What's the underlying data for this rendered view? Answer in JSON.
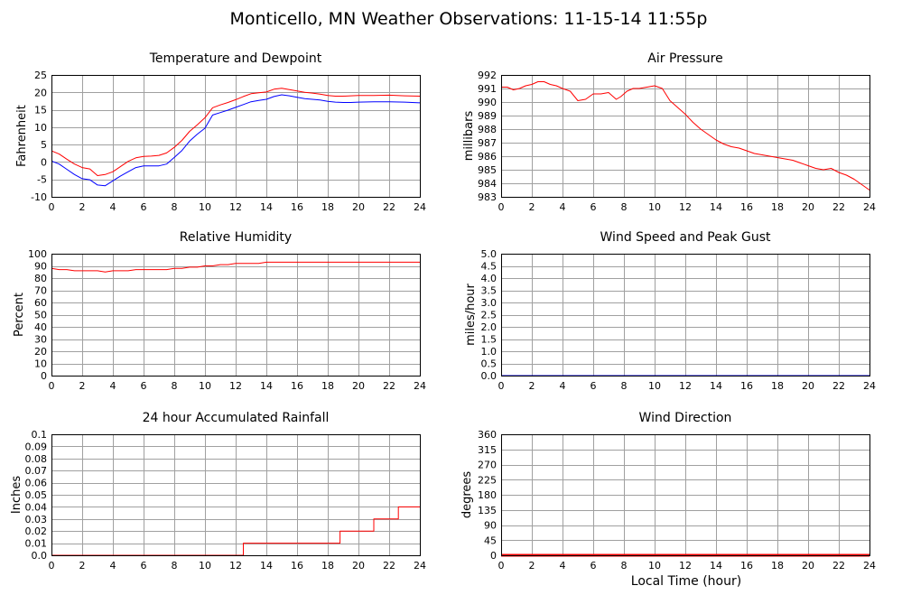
{
  "page": {
    "title": "Monticello, MN Weather Observations: 11-15-14 11:55p",
    "xlabel": "Local Time (hour)"
  },
  "chart_data": [
    {
      "id": "temp",
      "type": "line",
      "title": "Temperature and Dewpoint",
      "ylabel": "Fahrenheit",
      "xlim": [
        0,
        24
      ],
      "ylim": [
        -10,
        25
      ],
      "xticks": [
        0,
        2,
        4,
        6,
        8,
        10,
        12,
        14,
        16,
        18,
        20,
        22,
        24
      ],
      "yticks": [
        "-10",
        "-5",
        "0",
        "5",
        "10",
        "15",
        "20",
        "25"
      ],
      "grid": true,
      "series": [
        {
          "color": "#ff0000",
          "x": [
            0,
            0.5,
            1,
            1.5,
            2,
            2.5,
            3,
            3.5,
            4,
            4.5,
            5,
            5.5,
            6,
            6.5,
            7,
            7.5,
            8,
            8.5,
            9,
            9.5,
            10,
            10.5,
            11,
            11.5,
            12,
            12.5,
            13,
            13.5,
            14,
            14.5,
            15,
            15.5,
            16,
            16.5,
            17,
            17.5,
            18,
            18.5,
            19,
            19.5,
            20,
            21,
            22,
            23,
            24
          ],
          "y": [
            3.2,
            2.3,
            0.8,
            -0.6,
            -1.6,
            -2.0,
            -3.9,
            -3.6,
            -2.8,
            -1.3,
            0.2,
            1.2,
            1.6,
            1.7,
            1.9,
            2.6,
            4.2,
            6.2,
            8.8,
            10.7,
            12.7,
            15.6,
            16.4,
            17.1,
            17.9,
            18.8,
            19.6,
            19.9,
            20.1,
            20.9,
            21.2,
            20.8,
            20.4,
            20.0,
            19.8,
            19.5,
            19.1,
            18.9,
            18.9,
            19.0,
            19.1,
            19.1,
            19.2,
            19.0,
            18.9
          ]
        },
        {
          "color": "#0000ff",
          "x": [
            0,
            0.5,
            1,
            1.5,
            2,
            2.5,
            3,
            3.5,
            4,
            4.5,
            5,
            5.5,
            6,
            6.5,
            7,
            7.5,
            8,
            8.5,
            9,
            9.5,
            10,
            10.5,
            11,
            11.5,
            12,
            12.5,
            13,
            13.5,
            14,
            14.5,
            15,
            15.5,
            16,
            16.5,
            17,
            17.5,
            18,
            18.5,
            19,
            19.5,
            20,
            21,
            22,
            23,
            24
          ],
          "y": [
            0.3,
            -0.6,
            -2.1,
            -3.6,
            -4.8,
            -5.1,
            -6.6,
            -6.8,
            -5.4,
            -4.0,
            -2.8,
            -1.6,
            -1.1,
            -1.1,
            -1.1,
            -0.6,
            1.3,
            3.3,
            6.0,
            8.0,
            9.7,
            13.5,
            14.2,
            14.9,
            15.7,
            16.5,
            17.3,
            17.7,
            18.0,
            18.8,
            19.3,
            19.0,
            18.6,
            18.2,
            18.0,
            17.8,
            17.4,
            17.2,
            17.1,
            17.1,
            17.2,
            17.3,
            17.3,
            17.2,
            17.0
          ]
        }
      ]
    },
    {
      "id": "pressure",
      "type": "line",
      "title": "Air Pressure",
      "ylabel": "millibars",
      "xlim": [
        0,
        24
      ],
      "ylim": [
        983,
        992
      ],
      "xticks": [
        0,
        2,
        4,
        6,
        8,
        10,
        12,
        14,
        16,
        18,
        20,
        22,
        24
      ],
      "yticks": [
        "983",
        "984",
        "985",
        "986",
        "987",
        "988",
        "989",
        "990",
        "991",
        "992"
      ],
      "grid": true,
      "series": [
        {
          "color": "#ff0000",
          "x": [
            0,
            0.4,
            0.8,
            1.2,
            1.6,
            2.0,
            2.4,
            2.8,
            3.2,
            3.6,
            4.0,
            4.5,
            5.0,
            5.5,
            6.0,
            6.5,
            7.0,
            7.5,
            7.8,
            8.2,
            8.6,
            9.0,
            9.5,
            10.0,
            10.5,
            11.0,
            11.5,
            12.0,
            12.5,
            13.0,
            13.5,
            14.0,
            14.5,
            15.0,
            15.5,
            16.0,
            16.5,
            17.0,
            17.5,
            18.0,
            18.5,
            19.0,
            19.5,
            20.0,
            20.5,
            21.0,
            21.5,
            22.0,
            22.5,
            23.0,
            23.5,
            24.0
          ],
          "y": [
            991.1,
            991.1,
            990.9,
            991.0,
            991.2,
            991.3,
            991.5,
            991.5,
            991.3,
            991.2,
            991.0,
            990.8,
            990.1,
            990.2,
            990.6,
            990.6,
            990.7,
            990.2,
            990.4,
            990.8,
            991.0,
            991.0,
            991.1,
            991.2,
            991.0,
            990.1,
            989.6,
            989.1,
            988.5,
            988.0,
            987.6,
            987.2,
            986.9,
            986.7,
            986.6,
            986.4,
            986.2,
            986.1,
            986.0,
            985.9,
            985.8,
            985.7,
            985.5,
            985.3,
            985.1,
            985.0,
            985.1,
            984.8,
            984.6,
            984.3,
            983.9,
            983.5
          ]
        }
      ]
    },
    {
      "id": "humidity",
      "type": "line",
      "title": "Relative Humidity",
      "ylabel": "Percent",
      "xlim": [
        0,
        24
      ],
      "ylim": [
        0,
        100
      ],
      "xticks": [
        0,
        2,
        4,
        6,
        8,
        10,
        12,
        14,
        16,
        18,
        20,
        22,
        24
      ],
      "yticks": [
        "0",
        "10",
        "20",
        "30",
        "40",
        "50",
        "60",
        "70",
        "80",
        "90",
        "100"
      ],
      "grid": true,
      "series": [
        {
          "color": "#ff0000",
          "x": [
            0,
            0.5,
            1,
            1.5,
            2,
            2.5,
            3,
            3.5,
            4,
            4.5,
            5,
            5.5,
            6,
            6.5,
            7,
            7.5,
            8,
            8.5,
            9,
            9.5,
            10,
            10.5,
            11,
            11.5,
            12,
            12.5,
            13,
            13.5,
            14,
            15,
            16,
            17,
            18,
            19,
            20,
            21,
            22,
            23,
            24
          ],
          "y": [
            88,
            87,
            87,
            86,
            86,
            86,
            86,
            85,
            86,
            86,
            86,
            87,
            87,
            87,
            87,
            87,
            88,
            88,
            89,
            89,
            90,
            90,
            91,
            91,
            92,
            92,
            92,
            92,
            93,
            93,
            93,
            93,
            93,
            93,
            93,
            93,
            93,
            93,
            93
          ]
        }
      ]
    },
    {
      "id": "wind",
      "type": "line",
      "title": "Wind Speed and Peak Gust",
      "ylabel": "miles/hour",
      "xlim": [
        0,
        24
      ],
      "ylim": [
        0,
        5
      ],
      "xticks": [
        0,
        2,
        4,
        6,
        8,
        10,
        12,
        14,
        16,
        18,
        20,
        22,
        24
      ],
      "yticks": [
        "0.0",
        "0.5",
        "1.0",
        "1.5",
        "2.0",
        "2.5",
        "3.0",
        "3.5",
        "4.0",
        "4.5",
        "5.0"
      ],
      "grid": true,
      "series": [
        {
          "color": "#ff0000",
          "x": [
            0,
            24
          ],
          "y": [
            0,
            0
          ]
        },
        {
          "color": "#0000ff",
          "x": [
            0,
            24
          ],
          "y": [
            0,
            0
          ]
        }
      ]
    },
    {
      "id": "rain",
      "type": "line",
      "title": "24 hour Accumulated Rainfall",
      "ylabel": "Inches",
      "xlim": [
        0,
        24
      ],
      "ylim": [
        0,
        0.1
      ],
      "xticks": [
        0,
        2,
        4,
        6,
        8,
        10,
        12,
        14,
        16,
        18,
        20,
        22,
        24
      ],
      "yticks": [
        "0.0",
        "0.01",
        "0.02",
        "0.03",
        "0.04",
        "0.05",
        "0.06",
        "0.07",
        "0.08",
        "0.09",
        "0.1"
      ],
      "grid": true,
      "series": [
        {
          "color": "#ff0000",
          "x": [
            0,
            12.5,
            12.5,
            18.8,
            18.8,
            21.0,
            21.0,
            22.6,
            22.6,
            24
          ],
          "y": [
            0,
            0,
            0.01,
            0.01,
            0.02,
            0.02,
            0.03,
            0.03,
            0.04,
            0.04
          ]
        }
      ]
    },
    {
      "id": "direction",
      "type": "line",
      "title": "Wind Direction",
      "ylabel": "degrees",
      "xlim": [
        0,
        24
      ],
      "ylim": [
        0,
        360
      ],
      "xticks": [
        0,
        2,
        4,
        6,
        8,
        10,
        12,
        14,
        16,
        18,
        20,
        22,
        24
      ],
      "yticks": [
        "0",
        "45",
        "90",
        "135",
        "180",
        "225",
        "270",
        "315",
        "360"
      ],
      "grid": true,
      "series": [
        {
          "color": "#ff0000",
          "x": [
            0,
            24
          ],
          "y": [
            0,
            0
          ],
          "bold": true
        }
      ]
    }
  ]
}
